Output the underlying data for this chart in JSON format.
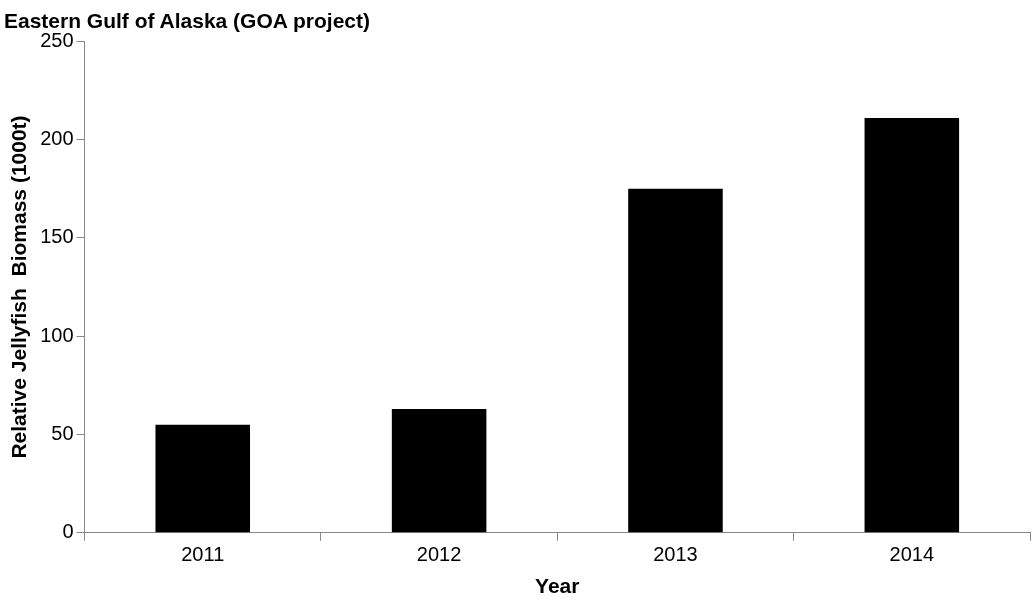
{
  "chart_data": {
    "type": "bar",
    "title": "Eastern Gulf of Alaska (GOA project)",
    "xlabel": "Year",
    "ylabel": "Relative Jellyfish  Biomass (1000t)",
    "categories": [
      "2011",
      "2012",
      "2013",
      "2014"
    ],
    "values": [
      55,
      63,
      175,
      211
    ],
    "color": "#000000",
    "ylim": [
      0,
      250
    ],
    "yticks": [
      0,
      50,
      100,
      150,
      200,
      250
    ],
    "grid": false,
    "legend": false
  }
}
